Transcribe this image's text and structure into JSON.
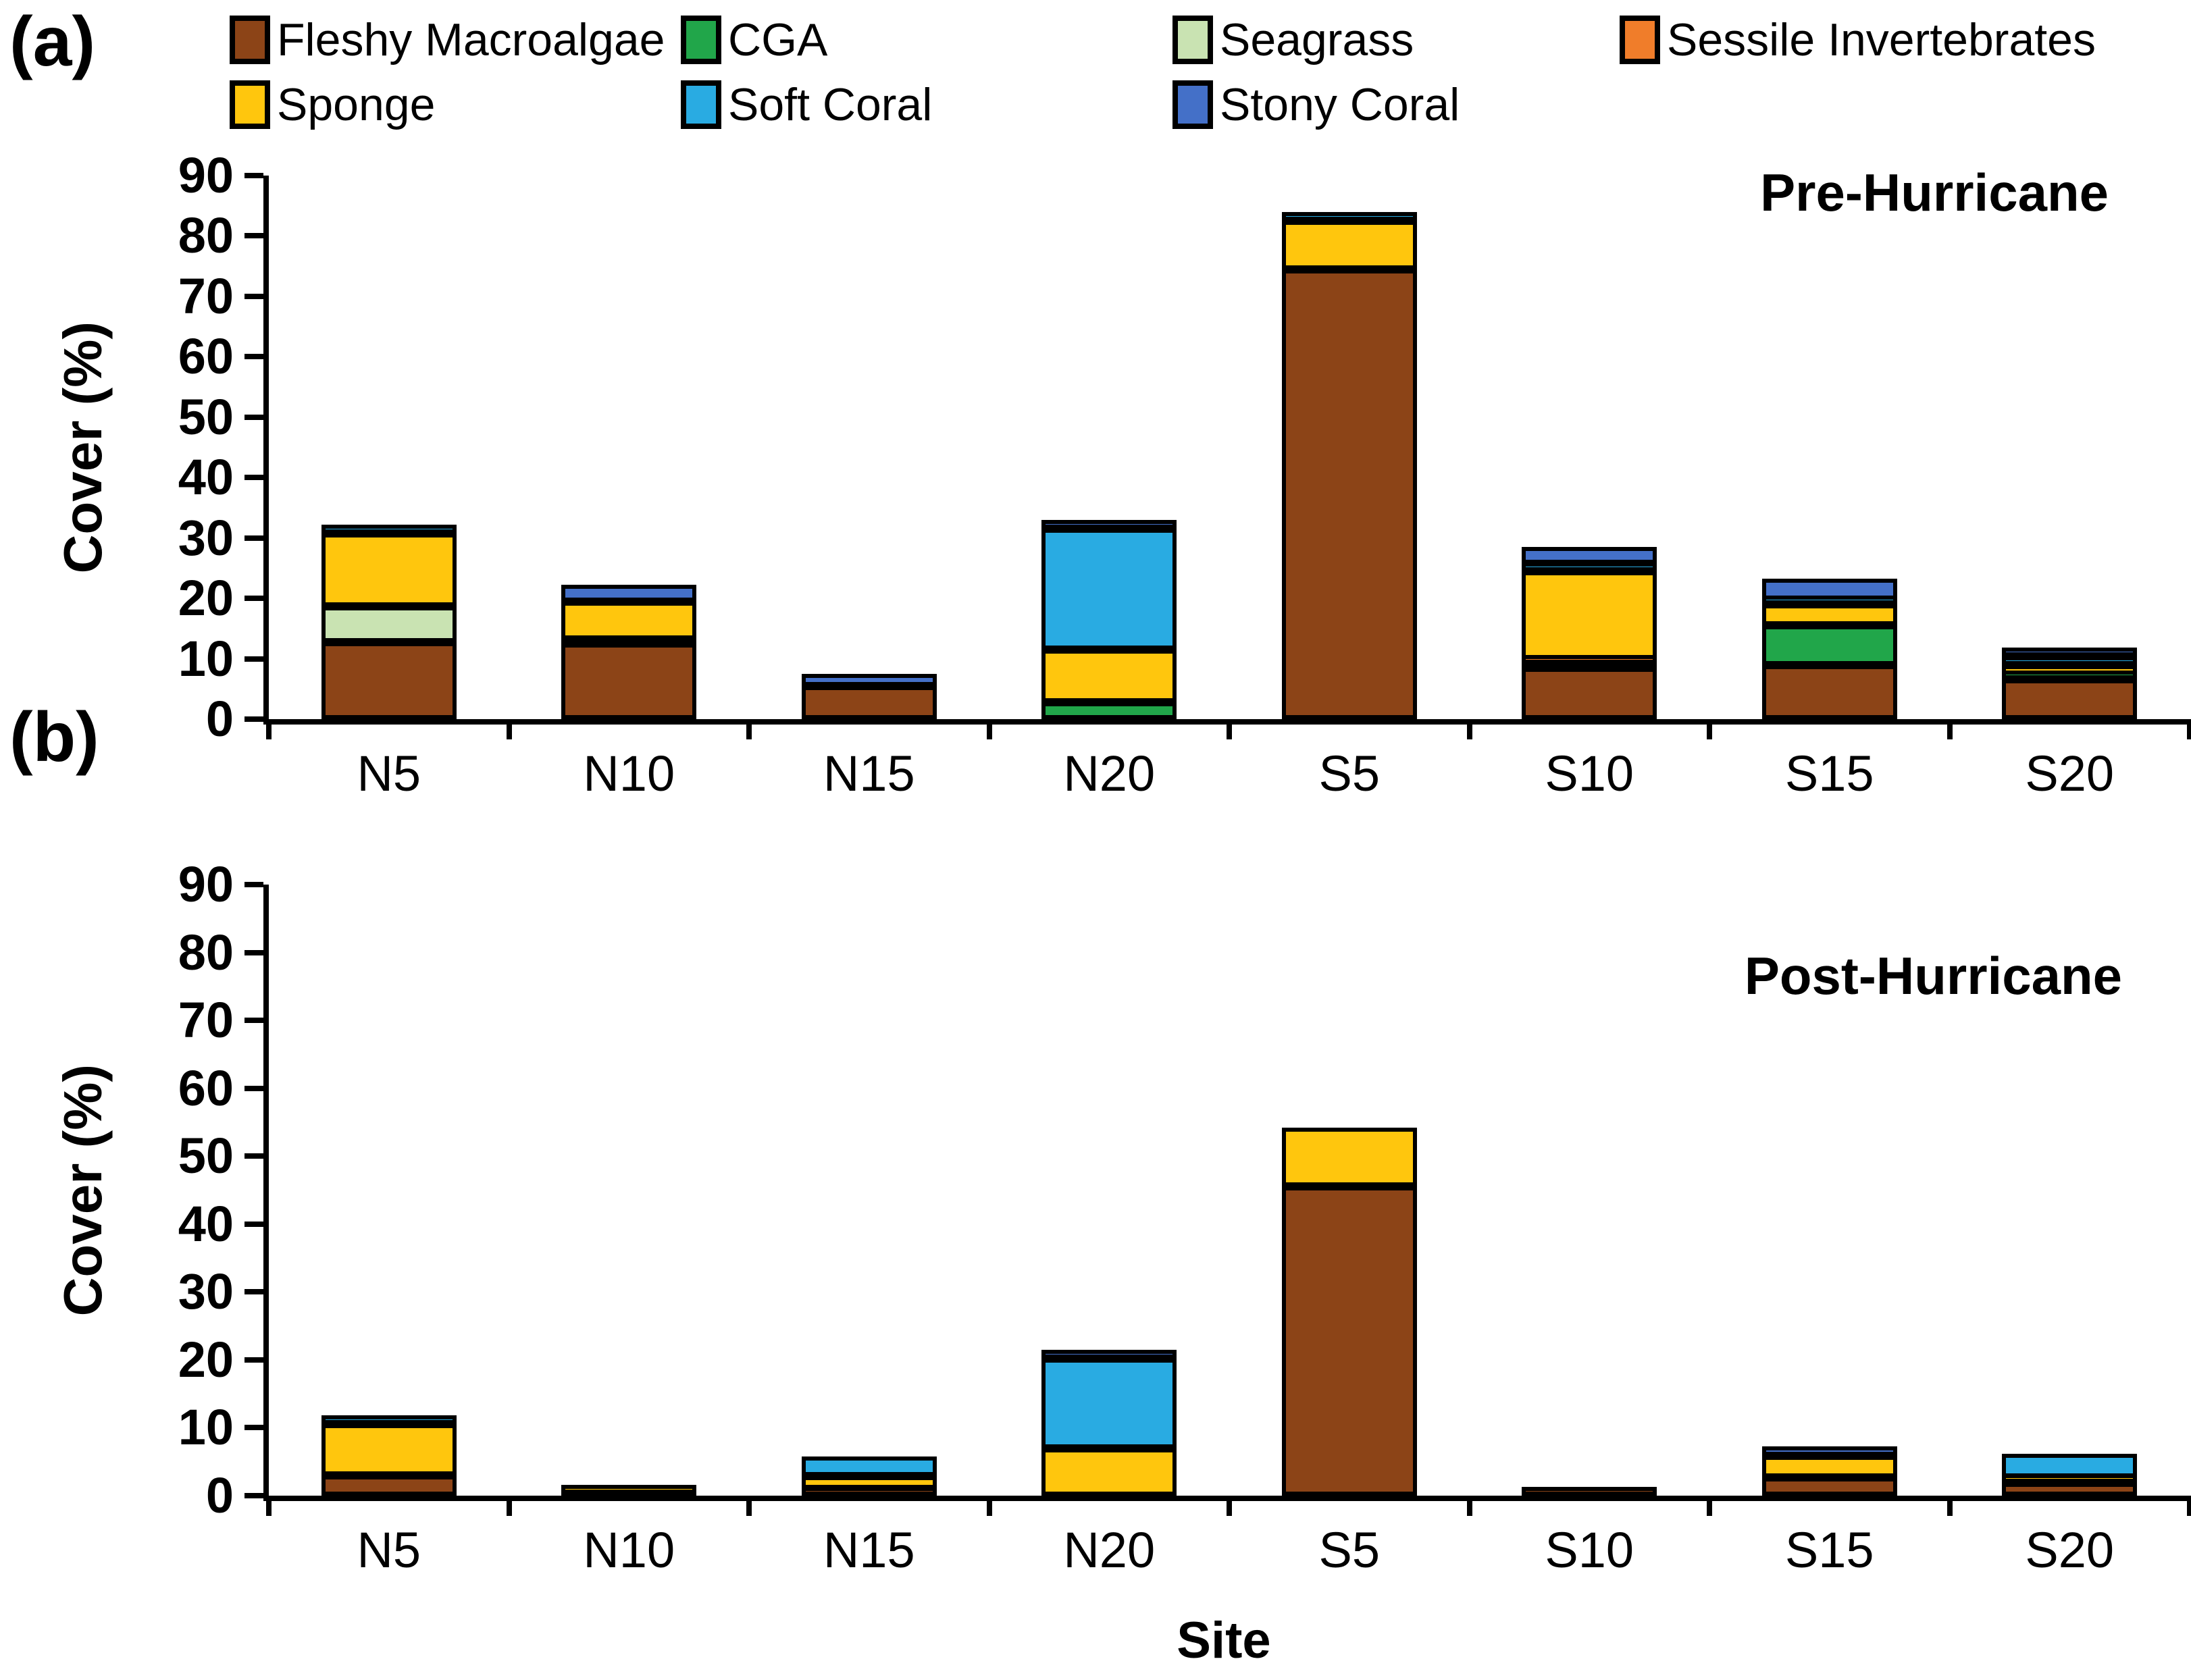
{
  "figure": {
    "panel_a_letter": "(a)",
    "panel_b_letter": "(b)",
    "x_axis_label": "Site"
  },
  "legend": {
    "rows": [
      [
        "Fleshy Macroalgae",
        "CGA",
        "Seagrass",
        "Sessile Invertebrates"
      ],
      [
        "Sponge",
        "Soft Coral",
        "Stony Coral"
      ]
    ]
  },
  "colors": {
    "fleshy_macroalgae": "#8C4417",
    "cga": "#21A64A",
    "seagrass": "#C9E3B2",
    "sessile_invertebrates": "#F07D2A",
    "sponge": "#FFC60D",
    "soft_coral": "#29ABE2",
    "stony_coral": "#4470C8",
    "axis": "#000000",
    "background": "#FFFFFF"
  },
  "chart_data": [
    {
      "type": "bar",
      "stacked": true,
      "title": "Pre-Hurricane",
      "ylabel": "Cover (%)",
      "xlabel": "",
      "ylim": [
        0,
        90
      ],
      "yticks": [
        0,
        10,
        20,
        30,
        40,
        50,
        60,
        70,
        80,
        90
      ],
      "grid": false,
      "legend_position": "top",
      "categories": [
        "N5",
        "N10",
        "N15",
        "N20",
        "S5",
        "S10",
        "S15",
        "S20"
      ],
      "series": [
        {
          "name": "Fleshy Macroalgae",
          "color": "#8C4417",
          "values": [
            12.8,
            12.5,
            5.5,
            0,
            74.5,
            8.5,
            9.0,
            6.6
          ]
        },
        {
          "name": "CGA",
          "color": "#21A64A",
          "values": [
            0,
            0,
            0,
            2.8,
            0,
            0.7,
            6.5,
            0.8
          ]
        },
        {
          "name": "Seagrass",
          "color": "#C9E3B2",
          "values": [
            5.9,
            0,
            0,
            0,
            0,
            0,
            0,
            0
          ]
        },
        {
          "name": "Sessile Invertebrates",
          "color": "#F07D2A",
          "values": [
            0,
            0.7,
            0,
            0,
            0,
            0.8,
            0,
            0
          ]
        },
        {
          "name": "Sponge",
          "color": "#FFC60D",
          "values": [
            12.0,
            6.3,
            0,
            8.7,
            8.0,
            14.5,
            3.5,
            1.5
          ]
        },
        {
          "name": "Soft Coral",
          "color": "#29ABE2",
          "values": [
            1.3,
            0,
            0,
            20.0,
            0.7,
            1.2,
            0.8,
            1.5
          ]
        },
        {
          "name": "Stony Coral",
          "color": "#4470C8",
          "values": [
            0,
            2.8,
            2.0,
            1.0,
            0,
            2.8,
            3.5,
            1.4
          ]
        }
      ]
    },
    {
      "type": "bar",
      "stacked": true,
      "title": "Post-Hurricane",
      "ylabel": "Cover (%)",
      "xlabel": "Site",
      "ylim": [
        0,
        90
      ],
      "yticks": [
        0,
        10,
        20,
        30,
        40,
        50,
        60,
        70,
        80,
        90
      ],
      "grid": false,
      "legend_position": "top",
      "categories": [
        "N5",
        "N10",
        "N15",
        "N20",
        "S5",
        "S10",
        "S15",
        "S20"
      ],
      "series": [
        {
          "name": "Fleshy Macroalgae",
          "color": "#8C4417",
          "values": [
            3.0,
            0.3,
            1.0,
            0,
            45.5,
            0.4,
            2.7,
            1.9
          ]
        },
        {
          "name": "CGA",
          "color": "#21A64A",
          "values": [
            0,
            0,
            0,
            0,
            0,
            0,
            0,
            0
          ]
        },
        {
          "name": "Seagrass",
          "color": "#C9E3B2",
          "values": [
            0,
            0,
            0,
            0,
            0,
            0,
            0,
            0
          ]
        },
        {
          "name": "Sessile Invertebrates",
          "color": "#F07D2A",
          "values": [
            0,
            0,
            0,
            0,
            0,
            0,
            0,
            0
          ]
        },
        {
          "name": "Sponge",
          "color": "#FFC60D",
          "values": [
            7.5,
            1.2,
            1.9,
            7.0,
            8.7,
            0,
            3.2,
            0.8
          ]
        },
        {
          "name": "Soft Coral",
          "color": "#29ABE2",
          "values": [
            1.0,
            0,
            2.9,
            13.2,
            0,
            0,
            0,
            3.5
          ]
        },
        {
          "name": "Stony Coral",
          "color": "#4470C8",
          "values": [
            0,
            0,
            0,
            1.0,
            0,
            0,
            1.4,
            0
          ]
        }
      ]
    }
  ]
}
